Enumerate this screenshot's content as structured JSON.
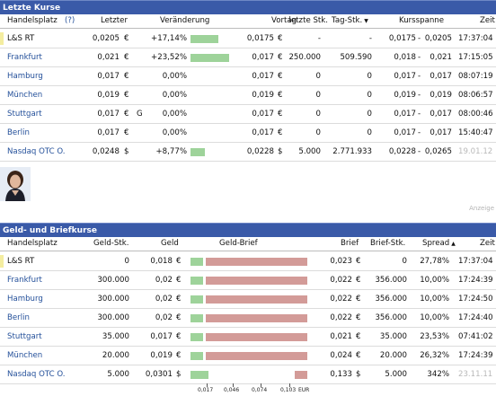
{
  "quotes": {
    "title": "Letzte Kurse",
    "columns": {
      "handelsplatz": "Handelsplatz",
      "help": "(?)",
      "letzter": "Letzter",
      "veraenderung": "Veränderung",
      "vortag": "Vortag",
      "letzte_stk": "letzte Stk.",
      "tag_stk": "Tag-Stk.",
      "kursspanne": "Kursspanne",
      "zeit": "Zeit"
    },
    "rows": [
      {
        "venue": "L&S RT",
        "last": "0,0205",
        "cur": "€",
        "flag": "",
        "change": "+17,14%",
        "change_pct": 17.14,
        "prev": "0,0175",
        "prev_cur": "€",
        "last_qty": "-",
        "day_qty": "-",
        "range_lo": "0,0175",
        "range_hi": "0,0205",
        "time": "17:37:04"
      },
      {
        "venue": "Frankfurt",
        "last": "0,021",
        "cur": "€",
        "flag": "",
        "change": "+23,52%",
        "change_pct": 23.52,
        "prev": "0,017",
        "prev_cur": "€",
        "last_qty": "250.000",
        "day_qty": "509.590",
        "range_lo": "0,018",
        "range_hi": "0,021",
        "time": "17:15:05"
      },
      {
        "venue": "Hamburg",
        "last": "0,017",
        "cur": "€",
        "flag": "",
        "change": "0,00%",
        "change_pct": 0,
        "prev": "0,017",
        "prev_cur": "€",
        "last_qty": "0",
        "day_qty": "0",
        "range_lo": "0,017",
        "range_hi": "0,017",
        "time": "08:07:19"
      },
      {
        "venue": "München",
        "last": "0,019",
        "cur": "€",
        "flag": "",
        "change": "0,00%",
        "change_pct": 0,
        "prev": "0,019",
        "prev_cur": "€",
        "last_qty": "0",
        "day_qty": "0",
        "range_lo": "0,019",
        "range_hi": "0,019",
        "time": "08:06:57"
      },
      {
        "venue": "Stuttgart",
        "last": "0,017",
        "cur": "€",
        "flag": "G",
        "change": "0,00%",
        "change_pct": 0,
        "prev": "0,017",
        "prev_cur": "€",
        "last_qty": "0",
        "day_qty": "0",
        "range_lo": "0,017",
        "range_hi": "0,017",
        "time": "08:00:46"
      },
      {
        "venue": "Berlin",
        "last": "0,017",
        "cur": "€",
        "flag": "",
        "change": "0,00%",
        "change_pct": 0,
        "prev": "0,017",
        "prev_cur": "€",
        "last_qty": "0",
        "day_qty": "0",
        "range_lo": "0,017",
        "range_hi": "0,017",
        "time": "15:40:47"
      },
      {
        "venue": "Nasdaq OTC O.",
        "last": "0,0248",
        "cur": "$",
        "flag": "",
        "change": "+8,77%",
        "change_pct": 8.77,
        "prev": "0,0228",
        "prev_cur": "$",
        "last_qty": "5.000",
        "day_qty": "2.771.933",
        "range_lo": "0,0228",
        "range_hi": "0,0265",
        "time": "19.01.12"
      }
    ]
  },
  "anzeige": "Anzeige",
  "bidask": {
    "title": "Geld- und Briefkurse",
    "columns": {
      "handelsplatz": "Handelsplatz",
      "geld_stk": "Geld-Stk.",
      "geld": "Geld",
      "geld_brief": "Geld-Brief",
      "brief": "Brief",
      "brief_stk": "Brief-Stk.",
      "spread": "Spread",
      "zeit": "Zeit"
    },
    "rows": [
      {
        "venue": "L&S RT",
        "bid_qty": "0",
        "bid": "0,018",
        "bid_cur": "€",
        "ask": "0,023",
        "ask_cur": "€",
        "ask_qty": "0",
        "spread": "27,78%",
        "time": "17:37:04",
        "bid_val": 0.018,
        "ask_val": 0.023
      },
      {
        "venue": "Frankfurt",
        "bid_qty": "300.000",
        "bid": "0,02",
        "bid_cur": "€",
        "ask": "0,022",
        "ask_cur": "€",
        "ask_qty": "356.000",
        "spread": "10,00%",
        "time": "17:24:39",
        "bid_val": 0.02,
        "ask_val": 0.022
      },
      {
        "venue": "Hamburg",
        "bid_qty": "300.000",
        "bid": "0,02",
        "bid_cur": "€",
        "ask": "0,022",
        "ask_cur": "€",
        "ask_qty": "356.000",
        "spread": "10,00%",
        "time": "17:24:50",
        "bid_val": 0.02,
        "ask_val": 0.022
      },
      {
        "venue": "Berlin",
        "bid_qty": "300.000",
        "bid": "0,02",
        "bid_cur": "€",
        "ask": "0,022",
        "ask_cur": "€",
        "ask_qty": "356.000",
        "spread": "10,00%",
        "time": "17:24:40",
        "bid_val": 0.02,
        "ask_val": 0.022
      },
      {
        "venue": "Stuttgart",
        "bid_qty": "35.000",
        "bid": "0,017",
        "bid_cur": "€",
        "ask": "0,021",
        "ask_cur": "€",
        "ask_qty": "35.000",
        "spread": "23,53%",
        "time": "07:41:02",
        "bid_val": 0.017,
        "ask_val": 0.021
      },
      {
        "venue": "München",
        "bid_qty": "20.000",
        "bid": "0,019",
        "bid_cur": "€",
        "ask": "0,024",
        "ask_cur": "€",
        "ask_qty": "20.000",
        "spread": "26,32%",
        "time": "17:24:39",
        "bid_val": 0.019,
        "ask_val": 0.024
      },
      {
        "venue": "Nasdaq OTC O.",
        "bid_qty": "5.000",
        "bid": "0,0301",
        "bid_cur": "$",
        "ask": "0,133",
        "ask_cur": "$",
        "ask_qty": "5.000",
        "spread": "342%",
        "time": "23.11.11",
        "bid_val": 0.0301,
        "ask_val": 0.133
      }
    ],
    "scale": {
      "ticks": [
        "0,017",
        "0,046",
        "0,074",
        "0,103"
      ],
      "unit": "EUR"
    }
  },
  "colors": {
    "header_bg": "#3a5aa8",
    "bar_green": "#9ed39a",
    "bar_red": "#d39b98",
    "link": "#24509a"
  }
}
